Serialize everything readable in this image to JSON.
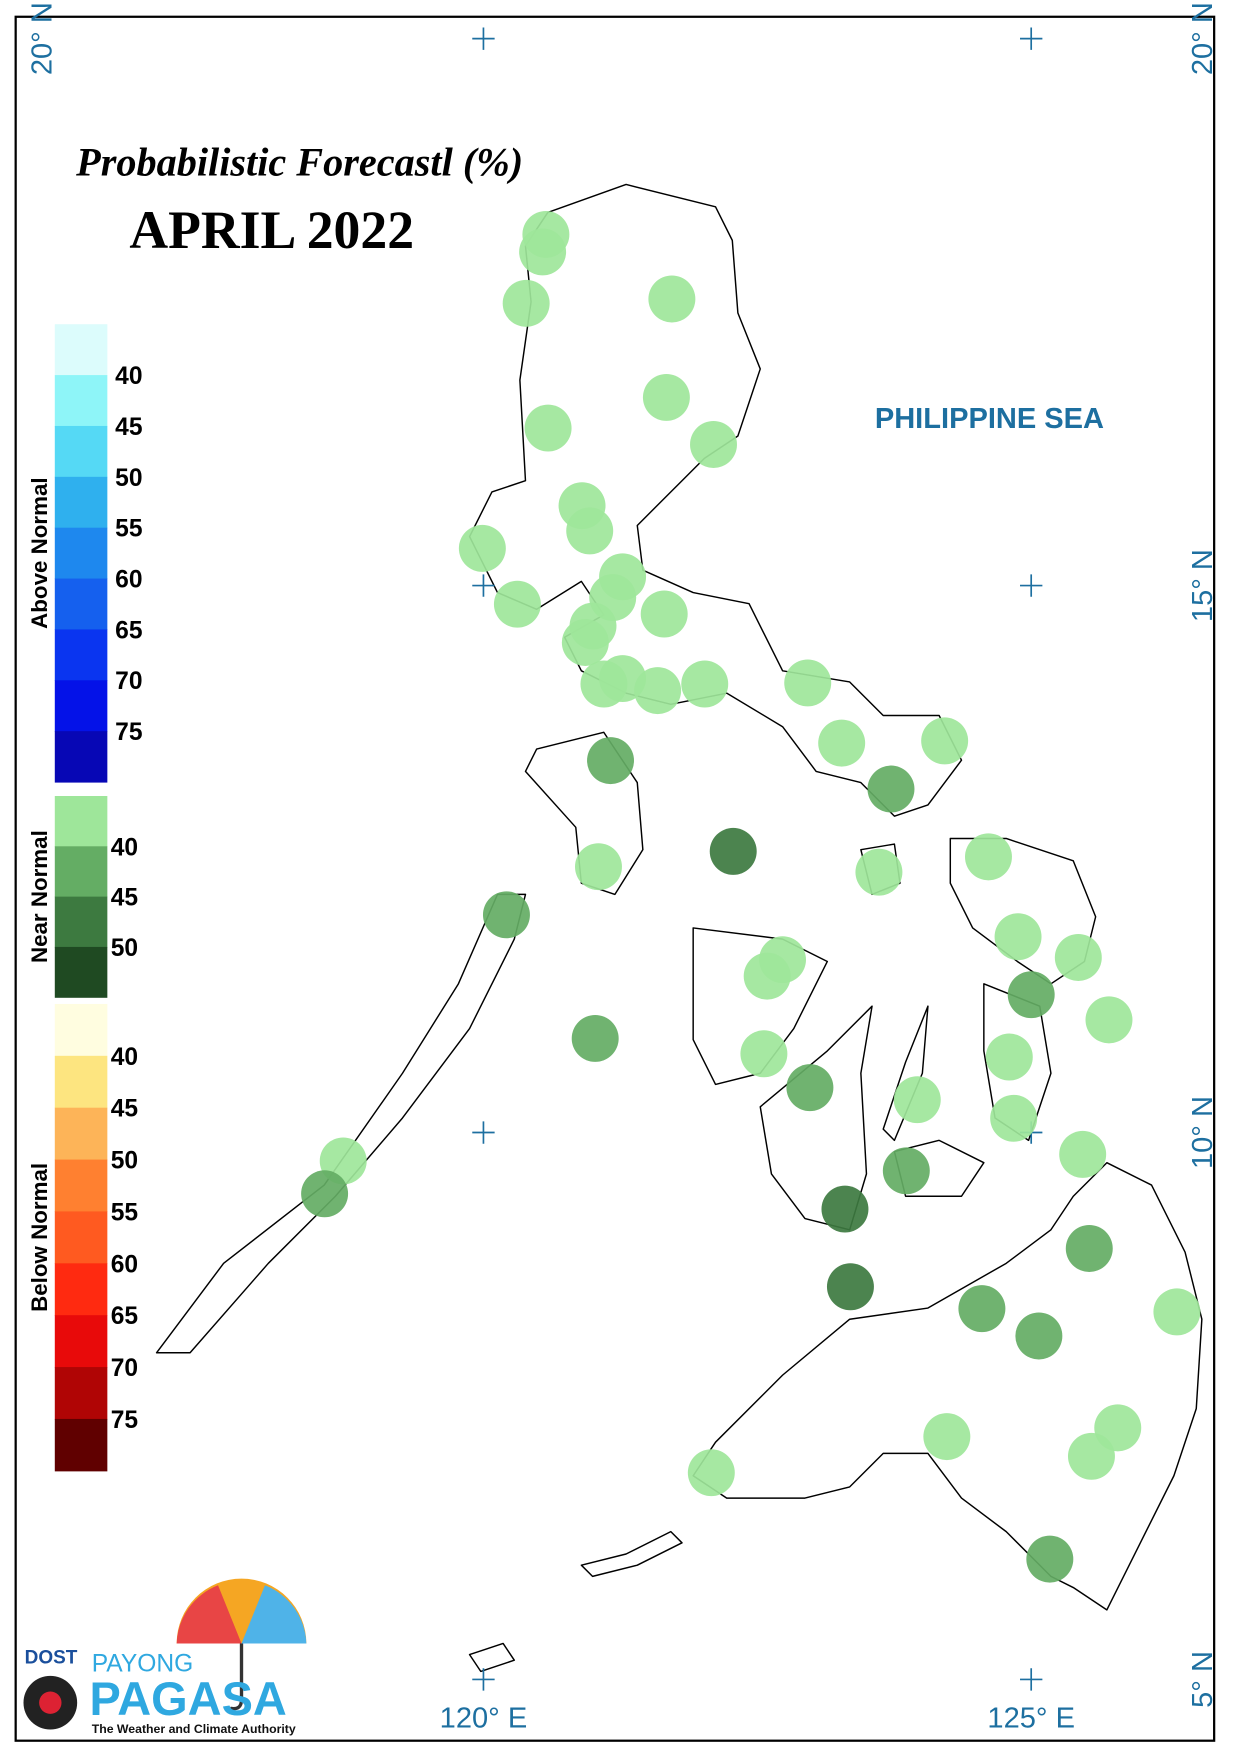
{
  "title": "Probabilistic Forecastl (%)",
  "subtitle": "APRIL 2022",
  "sea_label": "PHILIPPINE SEA",
  "lonlim": [
    115.73,
    126.67
  ],
  "latlim": [
    4.44,
    20.2
  ],
  "lon_ticks": [
    {
      "value": 120,
      "label": "120° E"
    },
    {
      "value": 125,
      "label": "125° E"
    }
  ],
  "lat_ticks": [
    {
      "value": 20,
      "label": "20° N"
    },
    {
      "value": 15,
      "label": "15° N"
    },
    {
      "value": 10,
      "label": "10° N"
    },
    {
      "value": 5,
      "label": "5° N"
    }
  ],
  "legend": [
    {
      "title": "Above Normal",
      "labels": [
        40,
        45,
        50,
        55,
        60,
        65,
        70,
        75
      ],
      "colors": [
        "#dcfcfc",
        "#8ef5f8",
        "#55d9f5",
        "#2fb0ee",
        "#1e88ee",
        "#1560ee",
        "#0a35f0",
        "#0412e8",
        "#0707b5"
      ]
    },
    {
      "title": "Near Normal",
      "labels": [
        40,
        45,
        50
      ],
      "colors": [
        "#9ee69a",
        "#64ad64",
        "#3d7a40",
        "#1f4a22"
      ]
    },
    {
      "title": "Below Normal",
      "labels": [
        40,
        45,
        50,
        55,
        60,
        65,
        70,
        75
      ],
      "colors": [
        "#fffde0",
        "#fde580",
        "#fdb458",
        "#ff8030",
        "#ff5a20",
        "#ff2a10",
        "#e80a0a",
        "#b00505",
        "#600000"
      ]
    }
  ],
  "stations": [
    {
      "lon": 120.57,
      "lat": 18.21,
      "value": 40
    },
    {
      "lon": 120.54,
      "lat": 18.05,
      "value": 40
    },
    {
      "lon": 120.39,
      "lat": 17.58,
      "value": 40
    },
    {
      "lon": 121.72,
      "lat": 17.62,
      "value": 40
    },
    {
      "lon": 121.67,
      "lat": 16.72,
      "value": 40
    },
    {
      "lon": 120.59,
      "lat": 16.44,
      "value": 40
    },
    {
      "lon": 122.1,
      "lat": 16.29,
      "value": 40
    },
    {
      "lon": 120.9,
      "lat": 15.73,
      "value": 40
    },
    {
      "lon": 120.97,
      "lat": 15.5,
      "value": 40
    },
    {
      "lon": 119.99,
      "lat": 15.34,
      "value": 40
    },
    {
      "lon": 120.31,
      "lat": 14.83,
      "value": 40
    },
    {
      "lon": 121.27,
      "lat": 15.08,
      "value": 40
    },
    {
      "lon": 121.18,
      "lat": 14.89,
      "value": 40
    },
    {
      "lon": 121.65,
      "lat": 14.74,
      "value": 40
    },
    {
      "lon": 121.0,
      "lat": 14.63,
      "value": 40
    },
    {
      "lon": 120.93,
      "lat": 14.48,
      "value": 40
    },
    {
      "lon": 121.1,
      "lat": 14.1,
      "value": 40
    },
    {
      "lon": 121.27,
      "lat": 14.15,
      "value": 40
    },
    {
      "lon": 121.59,
      "lat": 14.04,
      "value": 40
    },
    {
      "lon": 122.02,
      "lat": 14.1,
      "value": 40
    },
    {
      "lon": 122.96,
      "lat": 14.11,
      "value": 40
    },
    {
      "lon": 123.27,
      "lat": 13.56,
      "value": 40
    },
    {
      "lon": 124.21,
      "lat": 13.58,
      "value": 40
    },
    {
      "lon": 121.16,
      "lat": 13.4,
      "value": 45
    },
    {
      "lon": 123.72,
      "lat": 13.14,
      "value": 45
    },
    {
      "lon": 122.28,
      "lat": 12.57,
      "value": 50
    },
    {
      "lon": 121.05,
      "lat": 12.43,
      "value": 40
    },
    {
      "lon": 123.61,
      "lat": 12.38,
      "value": 40
    },
    {
      "lon": 124.61,
      "lat": 12.52,
      "value": 40
    },
    {
      "lon": 120.21,
      "lat": 11.99,
      "value": 45
    },
    {
      "lon": 124.88,
      "lat": 11.79,
      "value": 40
    },
    {
      "lon": 125.43,
      "lat": 11.6,
      "value": 40
    },
    {
      "lon": 122.73,
      "lat": 11.58,
      "value": 40
    },
    {
      "lon": 122.59,
      "lat": 11.43,
      "value": 40
    },
    {
      "lon": 125.0,
      "lat": 11.26,
      "value": 45
    },
    {
      "lon": 125.71,
      "lat": 11.03,
      "value": 40
    },
    {
      "lon": 121.02,
      "lat": 10.86,
      "value": 45
    },
    {
      "lon": 122.56,
      "lat": 10.72,
      "value": 40
    },
    {
      "lon": 124.8,
      "lat": 10.69,
      "value": 40
    },
    {
      "lon": 122.98,
      "lat": 10.41,
      "value": 45
    },
    {
      "lon": 123.96,
      "lat": 10.3,
      "value": 40
    },
    {
      "lon": 124.84,
      "lat": 10.13,
      "value": 40
    },
    {
      "lon": 125.47,
      "lat": 9.8,
      "value": 40
    },
    {
      "lon": 118.72,
      "lat": 9.74,
      "value": 40
    },
    {
      "lon": 118.55,
      "lat": 9.44,
      "value": 45
    },
    {
      "lon": 123.86,
      "lat": 9.65,
      "value": 45
    },
    {
      "lon": 123.3,
      "lat": 9.3,
      "value": 50
    },
    {
      "lon": 125.53,
      "lat": 8.94,
      "value": 45
    },
    {
      "lon": 123.35,
      "lat": 8.59,
      "value": 50
    },
    {
      "lon": 124.55,
      "lat": 8.39,
      "value": 45
    },
    {
      "lon": 125.07,
      "lat": 8.14,
      "value": 45
    },
    {
      "lon": 126.33,
      "lat": 8.36,
      "value": 40
    },
    {
      "lon": 124.23,
      "lat": 7.22,
      "value": 40
    },
    {
      "lon": 125.79,
      "lat": 7.3,
      "value": 40
    },
    {
      "lon": 125.55,
      "lat": 7.04,
      "value": 40
    },
    {
      "lon": 122.08,
      "lat": 6.89,
      "value": 40
    },
    {
      "lon": 125.17,
      "lat": 6.1,
      "value": 45
    }
  ],
  "logo": {
    "agency": "DOST",
    "brand_top": "PAYONG",
    "brand": "PAGASA",
    "tagline": "The Weather and Climate Authority"
  }
}
